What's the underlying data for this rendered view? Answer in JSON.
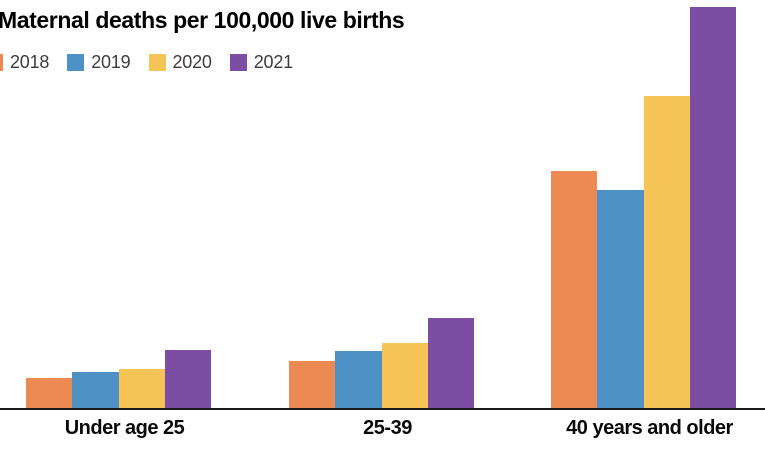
{
  "title": "Maternal deaths per 100,000 live births",
  "chart_data": {
    "type": "bar",
    "title": "Maternal deaths per 100,000 live births",
    "categories": [
      "Under age 25",
      "25-39",
      "40 years and older"
    ],
    "series": [
      {
        "name": "2018",
        "color": "#ED8A53",
        "values": [
          10.6,
          16.6,
          81.9
        ]
      },
      {
        "name": "2019",
        "color": "#4E91C4",
        "values": [
          12.6,
          19.9,
          75.5
        ]
      },
      {
        "name": "2020",
        "color": "#F6C357",
        "values": [
          13.8,
          22.8,
          107.9
        ]
      },
      {
        "name": "2021",
        "color": "#7B4DA3",
        "values": [
          20.4,
          31.3,
          138.5
        ]
      }
    ],
    "xlabel": "",
    "ylabel": "Maternal deaths per 100,000 live births",
    "ylim": [
      0,
      140
    ],
    "grid": false,
    "y_axis_visible": false,
    "legend_position": "top-left",
    "axis_color": "#1a1a1a"
  }
}
